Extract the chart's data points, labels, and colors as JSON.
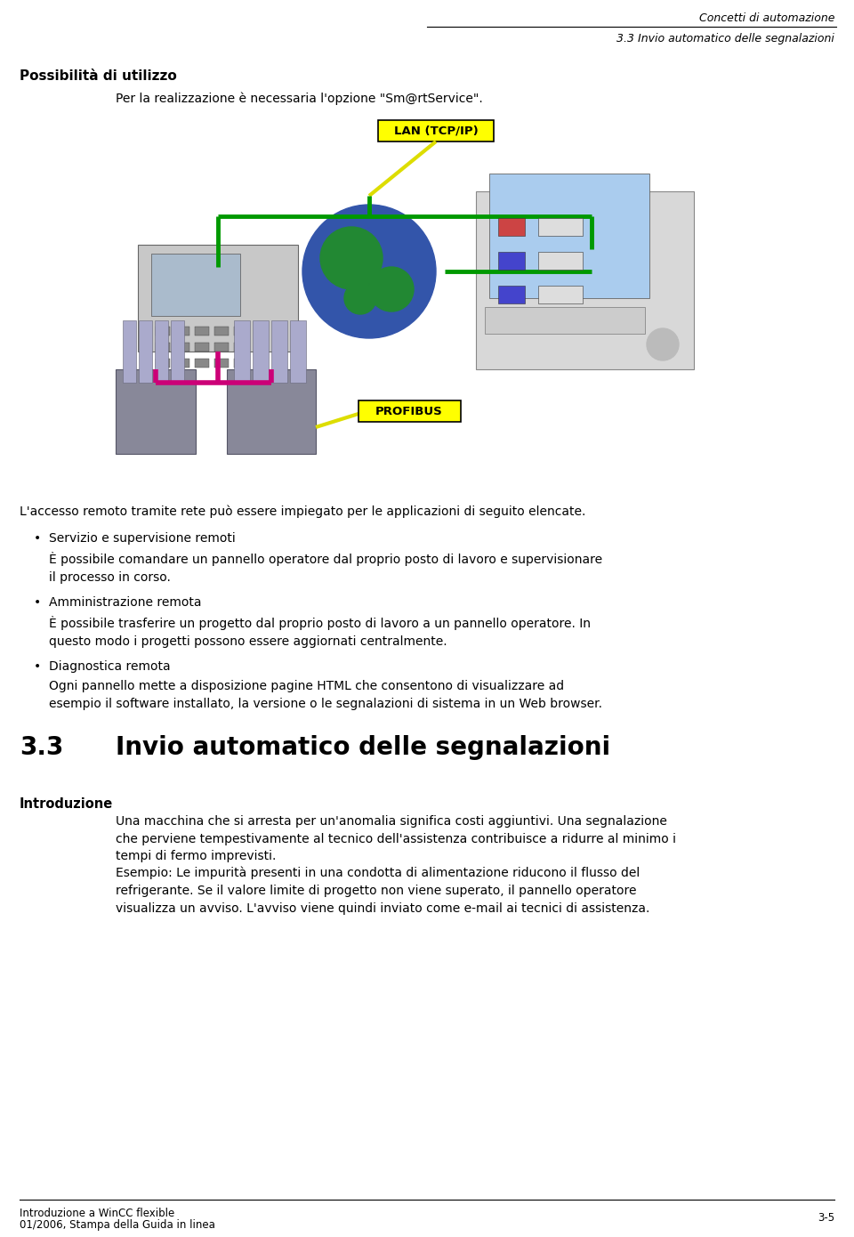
{
  "bg_color": "#ffffff",
  "header_right_text1": "Concetti di automazione",
  "header_right_text2": "3.3 Invio automatico delle segnalazioni",
  "section_title": "Possibilità di utilizzo",
  "section_intro": "Per la realizzazione è necessaria l'opzione \"Sm@rtService\".",
  "lan_label": "LAN (TCP/IP)",
  "lan_bg": "#ffff00",
  "profibus_label": "PROFIBUS",
  "profibus_bg": "#ffff00",
  "body_text1": "L'accesso remoto tramite rete può essere impiegato per le applicazioni di seguito elencate.",
  "bullet1_title": "Servizio e supervisione remoti",
  "bullet1_body": "È possibile comandare un pannello operatore dal proprio posto di lavoro e supervisionare\nil processo in corso.",
  "bullet2_title": "Amministrazione remota",
  "bullet2_body": "È possibile trasferire un progetto dal proprio posto di lavoro a un pannello operatore. In\nquesto modo i progetti possono essere aggiornati centralmente.",
  "bullet3_title": "Diagnostica remota",
  "bullet3_body": "Ogni pannello mette a disposizione pagine HTML che consentono di visualizzare ad\nesempio il software installato, la versione o le segnalazioni di sistema in un Web browser.",
  "section2_num": "3.3",
  "section2_title": "Invio automatico delle segnalazioni",
  "intro_label": "Introduzione",
  "intro_para1": "Una macchina che si arresta per un'anomalia significa costi aggiuntivi. Una segnalazione\nche perviene tempestivamente al tecnico dell'assistenza contribuisce a ridurre al minimo i\ntempi di fermo imprevisti.",
  "intro_para2": "Esempio: Le impurità presenti in una condotta di alimentazione riducono il flusso del\nrefrigerante. Se il valore limite di progetto non viene superato, il pannello operatore\nvisualizza un avviso. L'avviso viene quindi inviato come e-mail ai tecnici di assistenza.",
  "footer_left1": "Introduzione a WinCC flexible",
  "footer_left2": "01/2006, Stampa della Guida in linea",
  "footer_right": "3-5",
  "green_color": "#009900",
  "magenta_color": "#cc0077",
  "yellow_color": "#dddd00"
}
